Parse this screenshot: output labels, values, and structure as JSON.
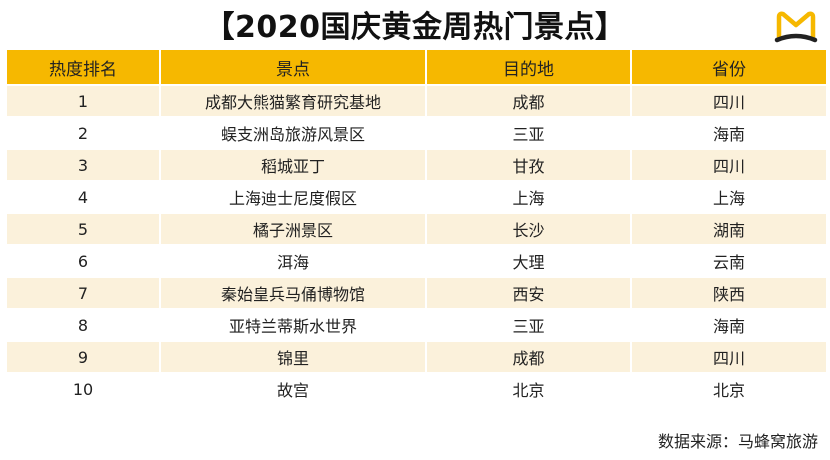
{
  "title": "【2020国庆黄金周热门景点】",
  "brand": {
    "logo_icon": "mafengwo-m-logo-icon",
    "colors": {
      "accent": "#f6b800",
      "dark": "#222222"
    }
  },
  "table": {
    "headers": [
      "热度排名",
      "景点",
      "目的地",
      "省份"
    ],
    "rows": [
      [
        "1",
        "成都大熊猫繁育研究基地",
        "成都",
        "四川"
      ],
      [
        "2",
        "蜈支洲岛旅游风景区",
        "三亚",
        "海南"
      ],
      [
        "3",
        "稻城亚丁",
        "甘孜",
        "四川"
      ],
      [
        "4",
        "上海迪士尼度假区",
        "上海",
        "上海"
      ],
      [
        "5",
        "橘子洲景区",
        "长沙",
        "湖南"
      ],
      [
        "6",
        "洱海",
        "大理",
        "云南"
      ],
      [
        "7",
        "秦始皇兵马俑博物馆",
        "西安",
        "陕西"
      ],
      [
        "8",
        "亚特兰蒂斯水世界",
        "三亚",
        "海南"
      ],
      [
        "9",
        "锦里",
        "成都",
        "四川"
      ],
      [
        "10",
        "故宫",
        "北京",
        "北京"
      ]
    ]
  },
  "chart_data": {
    "type": "table",
    "title": "【2020国庆黄金周热门景点】",
    "columns": [
      "热度排名",
      "景点",
      "目的地",
      "省份"
    ],
    "rows": [
      [
        1,
        "成都大熊猫繁育研究基地",
        "成都",
        "四川"
      ],
      [
        2,
        "蜈支洲岛旅游风景区",
        "三亚",
        "海南"
      ],
      [
        3,
        "稻城亚丁",
        "甘孜",
        "四川"
      ],
      [
        4,
        "上海迪士尼度假区",
        "上海",
        "上海"
      ],
      [
        5,
        "橘子洲景区",
        "长沙",
        "湖南"
      ],
      [
        6,
        "洱海",
        "大理",
        "云南"
      ],
      [
        7,
        "秦始皇兵马俑博物馆",
        "西安",
        "陕西"
      ],
      [
        8,
        "亚特兰蒂斯水世界",
        "三亚",
        "海南"
      ],
      [
        9,
        "锦里",
        "成都",
        "四川"
      ],
      [
        10,
        "故宫",
        "北京",
        "北京"
      ]
    ],
    "source": "数据来源：马蜂窝旅游"
  },
  "footer": {
    "source": "数据来源：马蜂窝旅游"
  }
}
